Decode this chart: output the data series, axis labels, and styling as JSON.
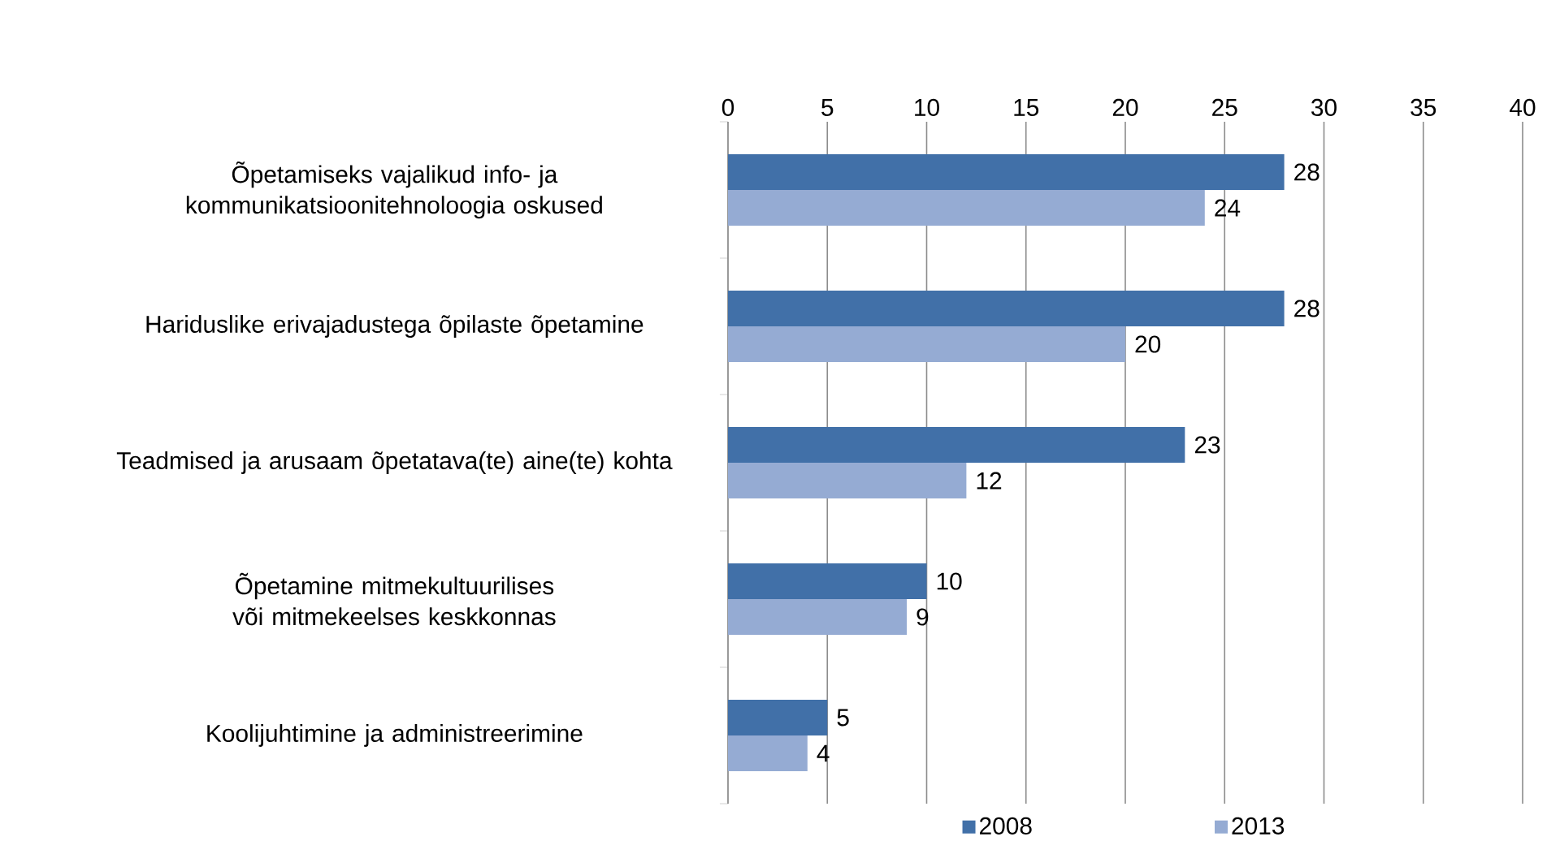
{
  "chart_data": {
    "type": "bar",
    "orientation": "horizontal",
    "categories": [
      "Õpetamiseks vajalikud info- ja kommunikatsioonitehnoloogia oskused",
      "Hariduslike erivajadustega õpilaste õpetamine",
      "Teadmised ja arusaam õpetatava(te) aine(te) kohta",
      "Õpetamine mitmekultuurilises või mitmekeelses keskkonnas",
      "Koolijuhtimine ja administreerimine"
    ],
    "series": [
      {
        "name": "2008",
        "color": "#4170a8",
        "values": [
          28,
          28,
          23,
          10,
          5
        ]
      },
      {
        "name": "2013",
        "color": "#95abd3",
        "values": [
          24,
          20,
          12,
          9,
          4
        ]
      }
    ],
    "xlim": [
      0,
      40
    ],
    "xticks": [
      0,
      5,
      10,
      15,
      20,
      25,
      30,
      35,
      40
    ],
    "grid": "x",
    "legend": "bottom",
    "data_labels": true
  }
}
